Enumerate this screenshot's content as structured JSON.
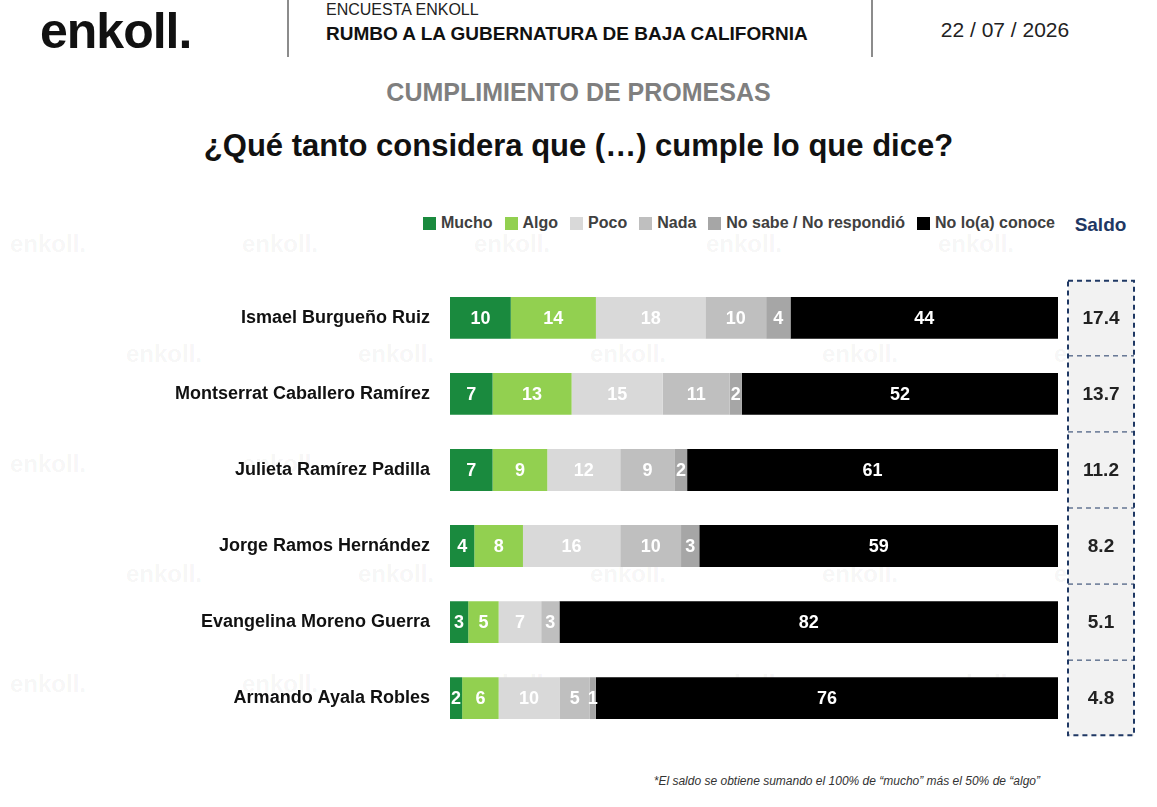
{
  "header": {
    "logo": "enkoll.",
    "survey": "ENCUESTA ENKOLL",
    "headline": "RUMBO A LA GUBERNATURA DE BAJA CALIFORNIA",
    "date": "22 / 07 / 2026",
    "watermark": "enkoll."
  },
  "chart_data": {
    "type": "bar",
    "orientation": "horizontal",
    "stacked": true,
    "title": "CUMPLIMIENTO DE PROMESAS",
    "subtitle": "¿Qué tanto considera que (…) cumple lo que dice?",
    "categories": [
      "Ismael Burgueño Ruiz",
      "Montserrat Caballero Ramírez",
      "Julieta Ramírez Padilla",
      "Jorge Ramos Hernández",
      "Evangelina Moreno Guerra",
      "Armando Ayala Robles"
    ],
    "series": [
      {
        "name": "Mucho",
        "color": "#1a8a3e",
        "values": [
          10,
          7,
          7,
          4,
          3,
          2
        ]
      },
      {
        "name": "Algo",
        "color": "#92d050",
        "values": [
          14,
          13,
          9,
          8,
          5,
          6
        ]
      },
      {
        "name": "Poco",
        "color": "#d9d9d9",
        "values": [
          18,
          15,
          12,
          16,
          7,
          10
        ]
      },
      {
        "name": "Nada",
        "color": "#bfbfbf",
        "values": [
          10,
          11,
          9,
          10,
          3,
          5
        ]
      },
      {
        "name": "No sabe / No respondió",
        "color": "#a6a6a6",
        "values": [
          4,
          2,
          2,
          3,
          null,
          1
        ]
      },
      {
        "name": "No lo(a) conoce",
        "color": "#000000",
        "values": [
          44,
          52,
          61,
          59,
          82,
          76
        ]
      }
    ],
    "xlim": [
      0,
      100
    ],
    "tick_labels": "y",
    "grid": false,
    "data_labels": true,
    "legend": "top",
    "saldo": {
      "label": "Saldo",
      "values": [
        17.4,
        13.7,
        11.2,
        8.2,
        5.1,
        4.8
      ]
    },
    "annotations": [
      "*El saldo se obtiene sumando el 100% de “mucho” más el 50% de “algo”"
    ]
  }
}
